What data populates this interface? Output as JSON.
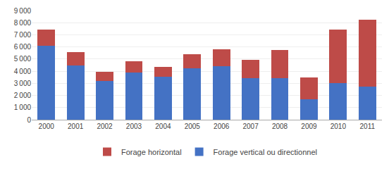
{
  "chart_data": {
    "type": "bar",
    "stacked": true,
    "categories": [
      "2000",
      "2001",
      "2002",
      "2003",
      "2004",
      "2005",
      "2006",
      "2007",
      "2008",
      "2009",
      "2010",
      "2011"
    ],
    "series": [
      {
        "name": "Forage vertical ou directionnel",
        "color": "#4472C4",
        "values": [
          6100,
          4500,
          3200,
          3900,
          3550,
          4250,
          4400,
          3400,
          3400,
          1700,
          3000,
          2750
        ]
      },
      {
        "name": "Forage horizontal",
        "color": "#BE4B48",
        "values": [
          1350,
          1100,
          750,
          900,
          800,
          1150,
          1400,
          1550,
          2350,
          1800,
          4450,
          5500
        ]
      }
    ],
    "ylim": [
      0,
      9000
    ],
    "yticks": [
      0,
      {
        "value": 1000,
        "label": "1 000"
      },
      {
        "value": 2000,
        "label": "2 000"
      },
      {
        "value": 3000,
        "label": "3 000"
      },
      {
        "value": 4000,
        "label": "4 000"
      },
      {
        "value": 5000,
        "label": "5 000"
      },
      {
        "value": 6000,
        "label": "6 000"
      },
      {
        "value": 7000,
        "label": "7 000"
      },
      {
        "value": 8000,
        "label": "8 000"
      },
      {
        "value": 9000,
        "label": "9 000"
      }
    ],
    "grid": true,
    "legend": "bottom"
  }
}
